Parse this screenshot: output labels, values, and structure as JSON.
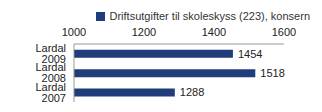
{
  "chart_data": {
    "type": "bar",
    "orientation": "horizontal",
    "categories": [
      "Lardal 2009",
      "Lardal 2008",
      "Lardal 2007"
    ],
    "series": [
      {
        "name": "Driftsutgifter til skoleskyss (223), konsern",
        "color": "#1f3d7a",
        "values": [
          1454,
          1518,
          1288
        ]
      }
    ],
    "xlim": [
      1000,
      1600
    ],
    "xticks": [
      1000,
      1200,
      1400,
      1600
    ],
    "data_labels": true,
    "legend": "top"
  }
}
